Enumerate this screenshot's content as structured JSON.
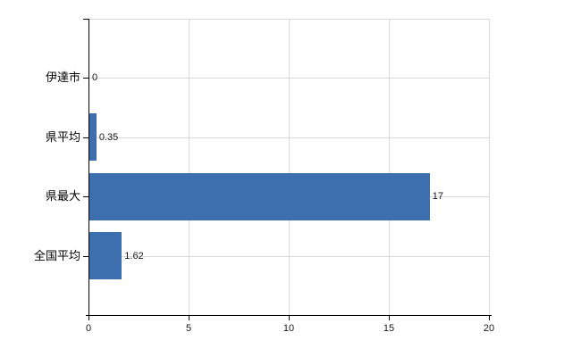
{
  "chart_data": {
    "type": "bar",
    "orientation": "horizontal",
    "title": "",
    "xlabel": "",
    "ylabel": "",
    "categories": [
      "伊達市",
      "県平均",
      "県最大",
      "全国平均"
    ],
    "values": [
      0,
      0.35,
      17,
      1.62
    ],
    "value_labels": [
      "0",
      "0.35",
      "17",
      "1.62"
    ],
    "x_ticks": [
      0,
      5,
      10,
      15,
      20
    ],
    "x_tick_labels": [
      "0",
      "5",
      "10",
      "15",
      "20"
    ],
    "xlim": [
      0,
      20
    ],
    "grid": true,
    "legend": false,
    "colors": {
      "bar": "#3d6eae",
      "gridline": "#d8d8d8",
      "axis": "#000000",
      "text": "#15151f",
      "background": "#ffffff"
    }
  }
}
